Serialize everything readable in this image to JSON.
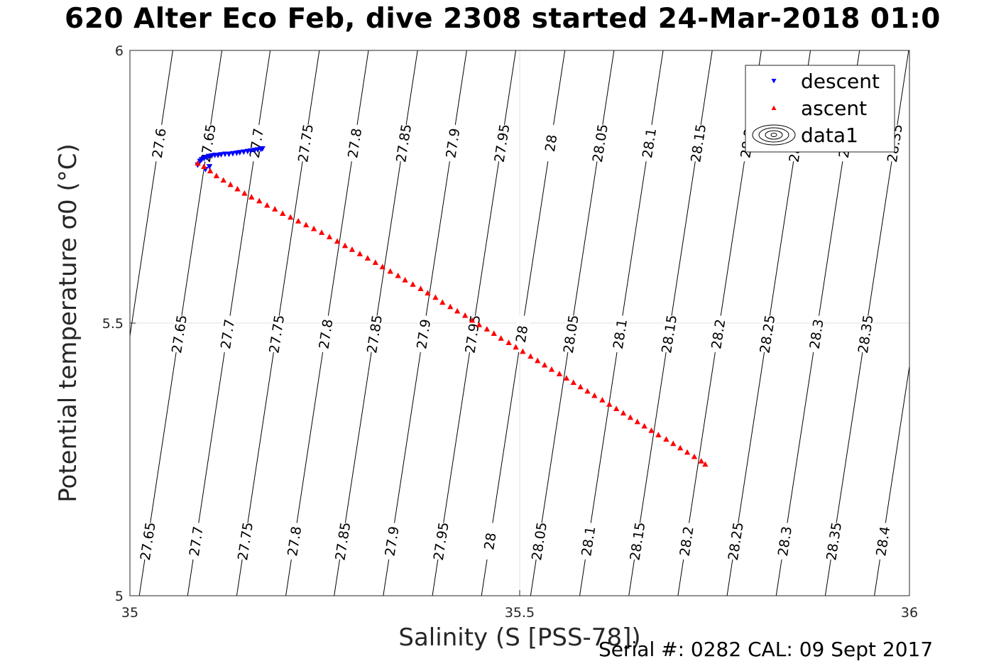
{
  "title": "620 Alter Eco Feb, dive 2308 started 24-Mar-2018 01:0",
  "footer": "Serial #: 0282  CAL: 09 Sept 2017",
  "chart_data": {
    "type": "scatter",
    "xlabel": "Salinity (S [PSS-78])",
    "ylabel": "Potential temperature σ0 (°C)",
    "xlim": [
      35,
      36
    ],
    "ylim": [
      5,
      6
    ],
    "xticks": [
      "35",
      "35.5",
      "36"
    ],
    "yticks": [
      "5",
      "5.5",
      "6"
    ],
    "grid": true,
    "legend_position": "top-right",
    "legend": [
      "descent",
      "ascent",
      "data1"
    ],
    "series": [
      {
        "name": "descent",
        "marker": "down-triangle",
        "color": "#0000ff",
        "points": [
          [
            35.087,
            5.79
          ],
          [
            35.09,
            5.797
          ],
          [
            35.092,
            5.8
          ],
          [
            35.095,
            5.802
          ],
          [
            35.098,
            5.804
          ],
          [
            35.101,
            5.806
          ],
          [
            35.105,
            5.807
          ],
          [
            35.109,
            5.808
          ],
          [
            35.113,
            5.808
          ],
          [
            35.117,
            5.809
          ],
          [
            35.122,
            5.81
          ],
          [
            35.127,
            5.81
          ],
          [
            35.132,
            5.811
          ],
          [
            35.137,
            5.812
          ],
          [
            35.141,
            5.813
          ],
          [
            35.146,
            5.814
          ],
          [
            35.151,
            5.815
          ],
          [
            35.155,
            5.816
          ],
          [
            35.16,
            5.817
          ],
          [
            35.164,
            5.818
          ],
          [
            35.168,
            5.819
          ],
          [
            35.17,
            5.82
          ],
          [
            35.102,
            5.787
          ],
          [
            35.097,
            5.782
          ]
        ]
      },
      {
        "name": "ascent",
        "marker": "up-triangle",
        "color": "#ff0000",
        "points": [
          [
            35.087,
            5.793
          ],
          [
            35.095,
            5.787
          ],
          [
            35.103,
            5.779
          ],
          [
            35.111,
            5.77
          ],
          [
            35.12,
            5.762
          ],
          [
            35.129,
            5.754
          ],
          [
            35.138,
            5.746
          ],
          [
            35.147,
            5.738
          ],
          [
            35.156,
            5.731
          ],
          [
            35.166,
            5.724
          ],
          [
            35.176,
            5.716
          ],
          [
            35.186,
            5.709
          ],
          [
            35.196,
            5.701
          ],
          [
            35.206,
            5.694
          ],
          [
            35.216,
            5.687
          ],
          [
            35.226,
            5.68
          ],
          [
            35.236,
            5.673
          ],
          [
            35.246,
            5.666
          ],
          [
            35.256,
            5.658
          ],
          [
            35.266,
            5.65
          ],
          [
            35.276,
            5.642
          ],
          [
            35.285,
            5.635
          ],
          [
            35.295,
            5.627
          ],
          [
            35.305,
            5.619
          ],
          [
            35.315,
            5.611
          ],
          [
            35.324,
            5.603
          ],
          [
            35.334,
            5.595
          ],
          [
            35.344,
            5.587
          ],
          [
            35.353,
            5.579
          ],
          [
            35.363,
            5.571
          ],
          [
            35.373,
            5.563
          ],
          [
            35.382,
            5.555
          ],
          [
            35.392,
            5.547
          ],
          [
            35.401,
            5.538
          ],
          [
            35.411,
            5.53
          ],
          [
            35.42,
            5.522
          ],
          [
            35.43,
            5.514
          ],
          [
            35.439,
            5.505
          ],
          [
            35.448,
            5.497
          ],
          [
            35.458,
            5.489
          ],
          [
            35.467,
            5.481
          ],
          [
            35.476,
            5.472
          ],
          [
            35.486,
            5.464
          ],
          [
            35.495,
            5.456
          ],
          [
            35.504,
            5.448
          ],
          [
            35.514,
            5.439
          ],
          [
            35.523,
            5.431
          ],
          [
            35.532,
            5.423
          ],
          [
            35.541,
            5.415
          ],
          [
            35.551,
            5.407
          ],
          [
            35.56,
            5.399
          ],
          [
            35.569,
            5.391
          ],
          [
            35.578,
            5.383
          ],
          [
            35.587,
            5.375
          ],
          [
            35.596,
            5.367
          ],
          [
            35.606,
            5.359
          ],
          [
            35.615,
            5.351
          ],
          [
            35.624,
            5.343
          ],
          [
            35.633,
            5.335
          ],
          [
            35.642,
            5.327
          ],
          [
            35.651,
            5.319
          ],
          [
            35.66,
            5.311
          ],
          [
            35.669,
            5.303
          ],
          [
            35.678,
            5.295
          ],
          [
            35.688,
            5.287
          ],
          [
            35.697,
            5.279
          ],
          [
            35.706,
            5.271
          ],
          [
            35.715,
            5.263
          ],
          [
            35.724,
            5.255
          ],
          [
            35.733,
            5.247
          ],
          [
            35.738,
            5.241
          ]
        ]
      }
    ],
    "contours": [
      {
        "label": "27.6",
        "bottom_s": 34.95,
        "top_s": 35.055
      },
      {
        "label": "27.65",
        "bottom_s": 35.012,
        "top_s": 35.118
      },
      {
        "label": "27.7",
        "bottom_s": 35.074,
        "top_s": 35.18
      },
      {
        "label": "27.75",
        "bottom_s": 35.137,
        "top_s": 35.243
      },
      {
        "label": "27.8",
        "bottom_s": 35.2,
        "top_s": 35.306
      },
      {
        "label": "27.85",
        "bottom_s": 35.262,
        "top_s": 35.369
      },
      {
        "label": "27.9",
        "bottom_s": 35.325,
        "top_s": 35.432
      },
      {
        "label": "27.95",
        "bottom_s": 35.388,
        "top_s": 35.495
      },
      {
        "label": "28",
        "bottom_s": 35.451,
        "top_s": 35.558
      },
      {
        "label": "28.05",
        "bottom_s": 35.514,
        "top_s": 35.621
      },
      {
        "label": "28.1",
        "bottom_s": 35.577,
        "top_s": 35.684
      },
      {
        "label": "28.15",
        "bottom_s": 35.64,
        "top_s": 35.747
      },
      {
        "label": "28.2",
        "bottom_s": 35.703,
        "top_s": 35.81
      },
      {
        "label": "28.25",
        "bottom_s": 35.766,
        "top_s": 35.873
      },
      {
        "label": "28.3",
        "bottom_s": 35.829,
        "top_s": 35.936
      },
      {
        "label": "28.35",
        "bottom_s": 35.892,
        "top_s": 35.999
      },
      {
        "label": "28.4",
        "bottom_s": 35.955,
        "top_s": 36.062
      }
    ]
  }
}
